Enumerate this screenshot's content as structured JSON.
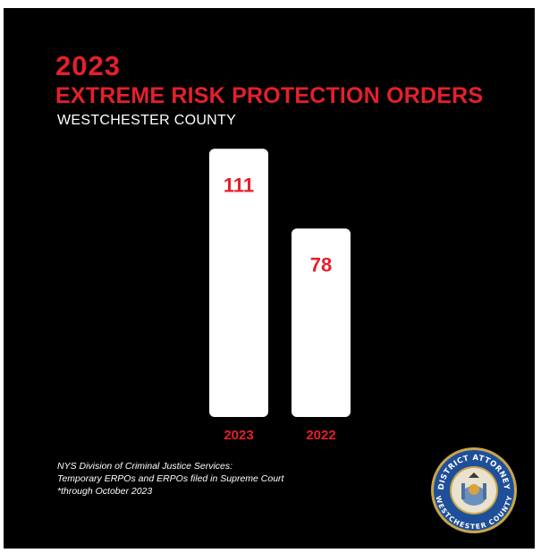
{
  "colors": {
    "accent": "#e4202a",
    "background": "#000000",
    "bar": "#ffffff",
    "text": "#ffffff"
  },
  "header": {
    "year": "2023",
    "title": "EXTREME RISK PROTECTION ORDERS",
    "subtitle": "WESTCHESTER COUNTY"
  },
  "chart_data": {
    "type": "bar",
    "categories": [
      "2023",
      "2022"
    ],
    "values": [
      111,
      78
    ],
    "title": "EXTREME RISK PROTECTION ORDERS",
    "grid": false,
    "legend": "none",
    "ylim": [
      0,
      120
    ]
  },
  "source": {
    "line1": "NYS Division of Criminal Justice Services:",
    "line2": "Temporary ERPOs and ERPOs filed in Supreme Court",
    "line3": "*through October 2023"
  },
  "seal": {
    "top_text": "DISTRICT ATTORNEY",
    "bottom_text": "WESTCHESTER COUNTY",
    "icon": "district-attorney-seal-icon"
  }
}
